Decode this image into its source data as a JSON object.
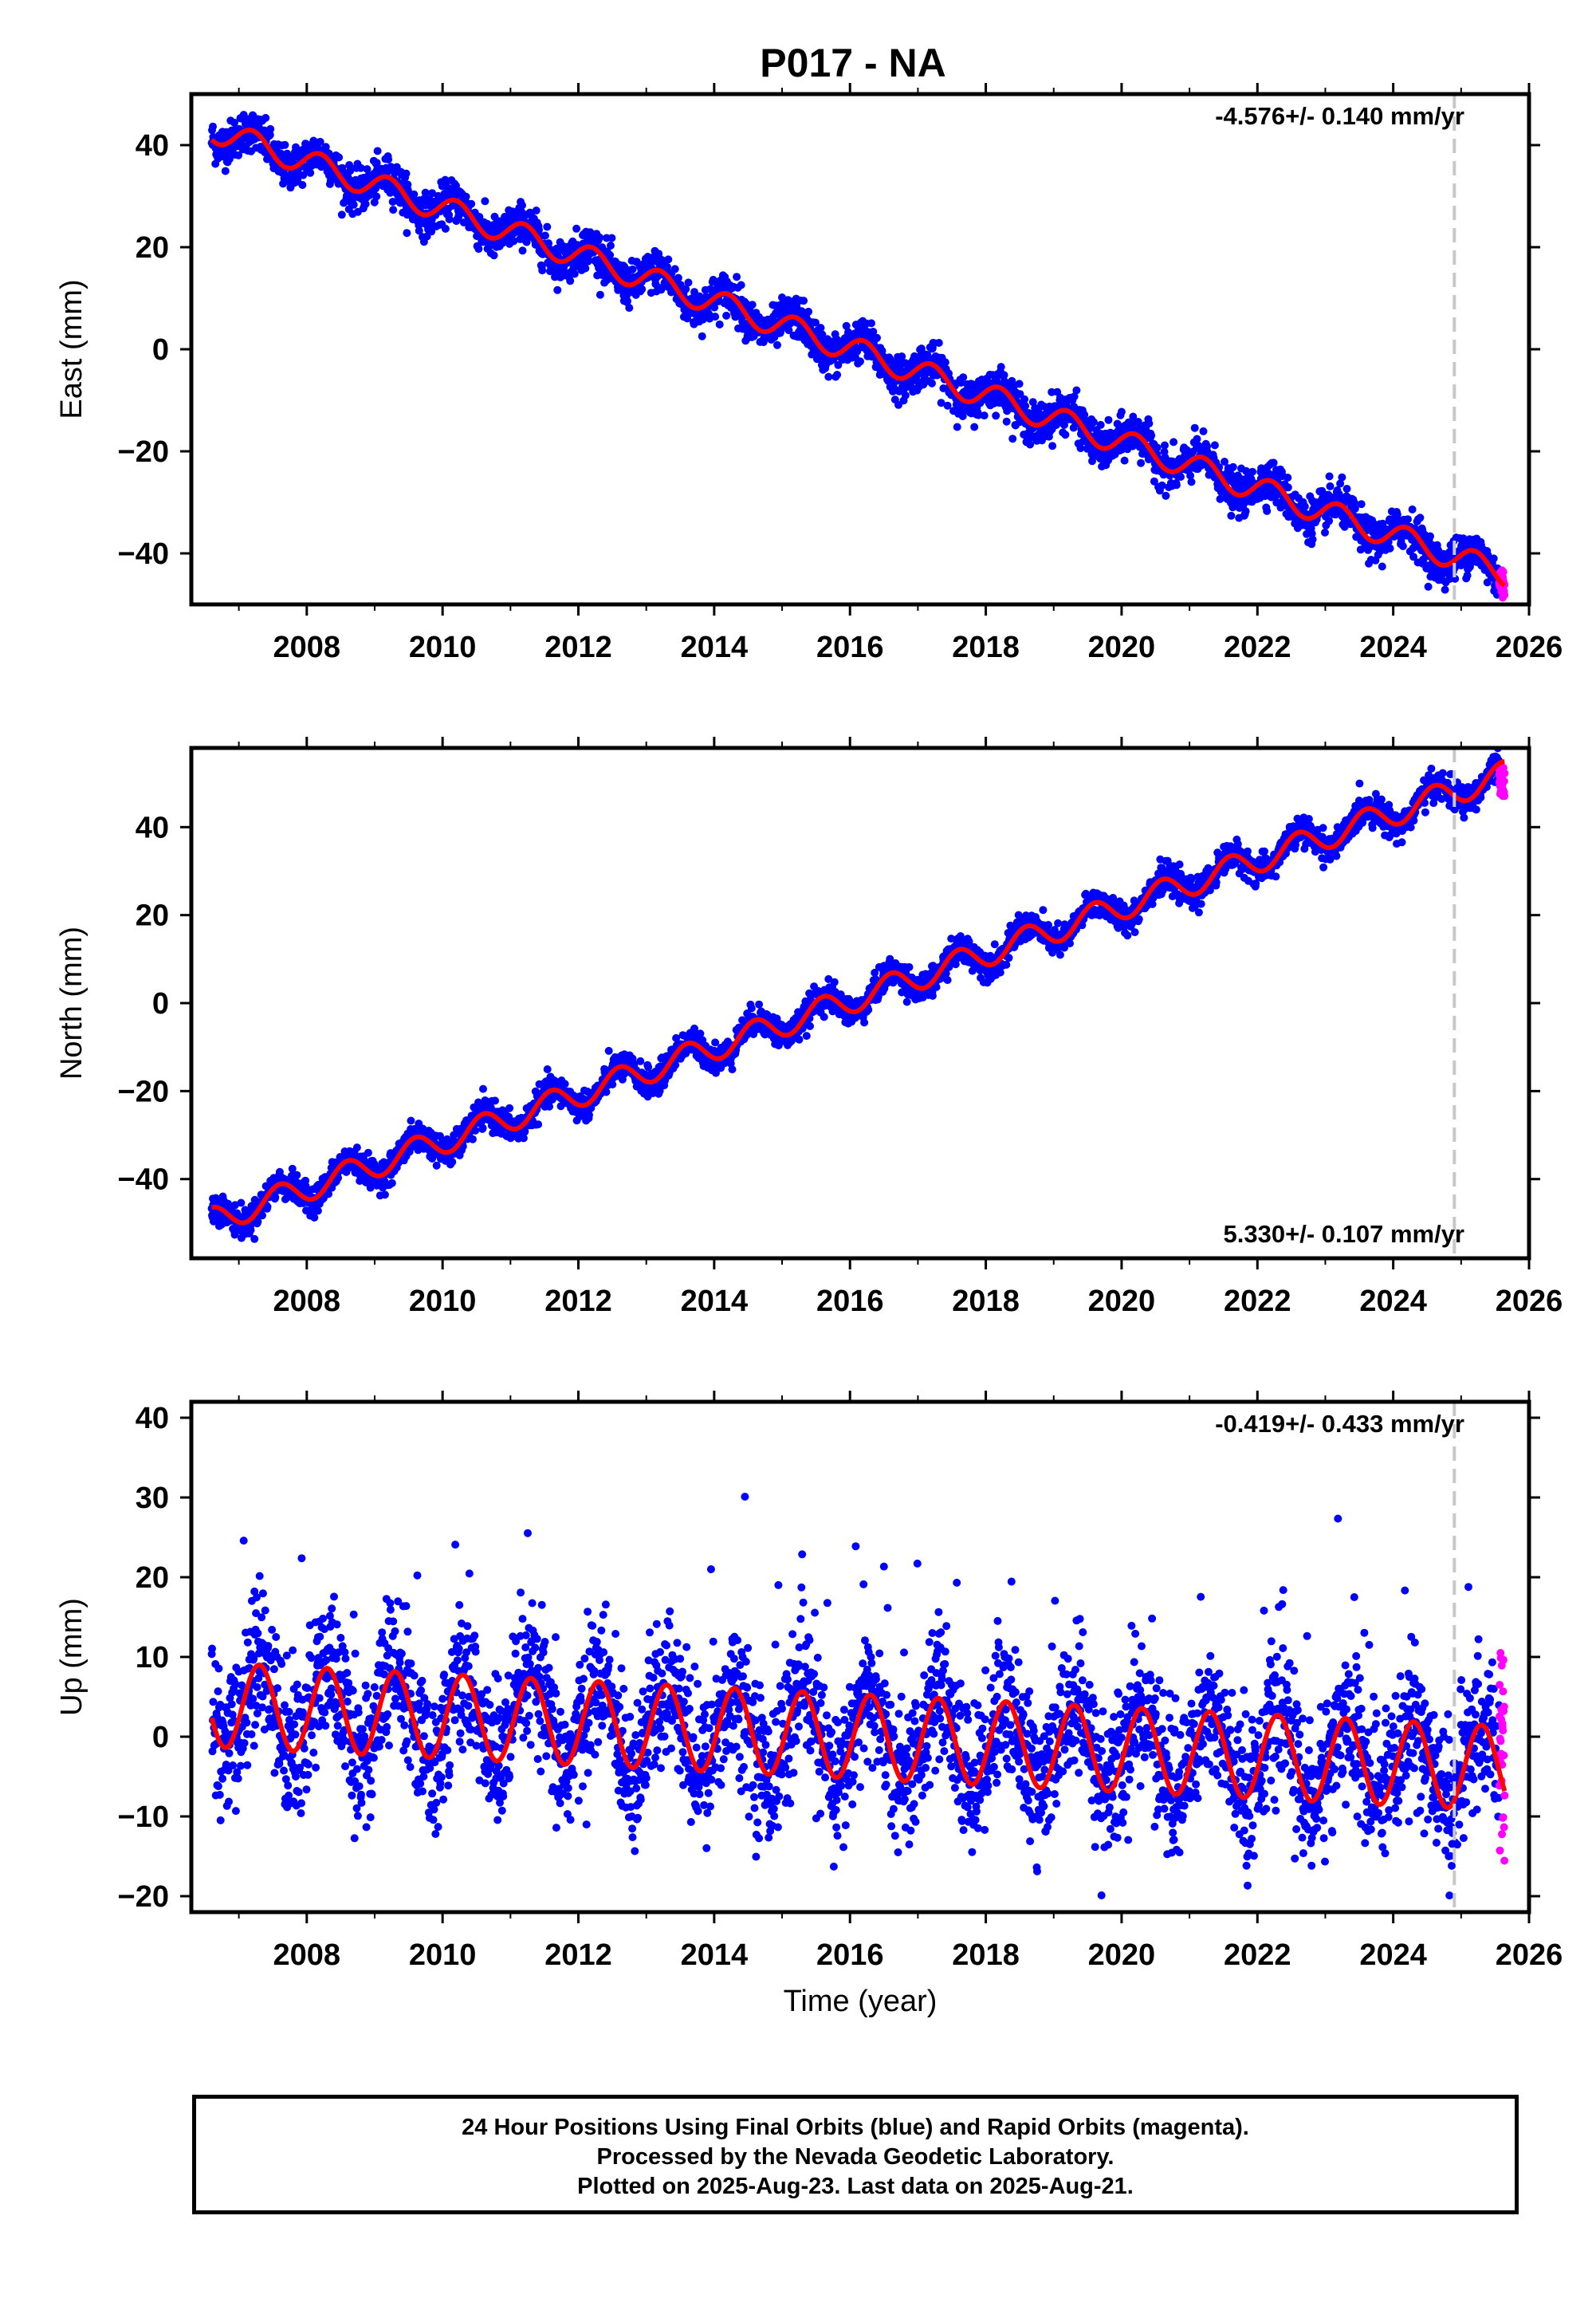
{
  "title": "P017 - NA",
  "colors": {
    "final_orbits": "#0000ff",
    "rapid_orbits": "#ff00ff",
    "model_fit": "#ff0000",
    "event_line": "#c8c8c8",
    "frame": "#000000"
  },
  "chart_data": [
    {
      "type": "scatter",
      "component": "east",
      "ylabel": "East (mm)",
      "xlabel": "",
      "xlim": [
        2006.3,
        2026.0
      ],
      "ylim": [
        -50,
        50
      ],
      "xticks": [
        2008,
        2010,
        2012,
        2014,
        2016,
        2018,
        2020,
        2022,
        2024,
        2026
      ],
      "yticks": [
        -40,
        -20,
        0,
        20,
        40
      ],
      "rate_label": "-4.576+/- 0.140 mm/yr",
      "rate_label_position": "top-right",
      "event_line_x": 2024.9,
      "model": {
        "start_year": 2006.6,
        "end_year": 2025.64,
        "start_value": 43.1,
        "rate_mm_per_yr": -4.576,
        "annual_amplitude": 2.5,
        "annual_phase_year": 0.2
      },
      "series": [
        {
          "name": "Final Orbits",
          "color": "#0000ff",
          "start_year": 2006.6,
          "end_year": 2025.56,
          "scatter_mm": 2.0
        },
        {
          "name": "Rapid Orbits",
          "color": "#ff00ff",
          "start_year": 2025.56,
          "end_year": 2025.64,
          "scatter_mm": 1.5
        }
      ]
    },
    {
      "type": "scatter",
      "component": "north",
      "ylabel": "North (mm)",
      "xlabel": "",
      "xlim": [
        2006.3,
        2026.0
      ],
      "ylim": [
        -58,
        58
      ],
      "xticks": [
        2008,
        2010,
        2012,
        2014,
        2016,
        2018,
        2020,
        2022,
        2024,
        2026
      ],
      "yticks": [
        -40,
        -20,
        0,
        20,
        40
      ],
      "rate_label": "5.330+/- 0.107 mm/yr",
      "rate_label_position": "bottom-right",
      "event_line_x": 2024.9,
      "model": {
        "start_year": 2006.6,
        "end_year": 2025.64,
        "start_value": -49.5,
        "rate_mm_per_yr": 5.33,
        "annual_amplitude": 3.0,
        "annual_phase_year": 0.6
      },
      "series": [
        {
          "name": "Final Orbits",
          "color": "#0000ff",
          "start_year": 2006.6,
          "end_year": 2025.56,
          "scatter_mm": 1.6
        },
        {
          "name": "Rapid Orbits",
          "color": "#ff00ff",
          "start_year": 2025.56,
          "end_year": 2025.64,
          "scatter_mm": 2.0,
          "offset_mm": -5
        }
      ]
    },
    {
      "type": "scatter",
      "component": "up",
      "ylabel": "Up (mm)",
      "xlabel": "Time (year)",
      "xlim": [
        2006.3,
        2026.0
      ],
      "ylim": [
        -22,
        42
      ],
      "xticks": [
        2008,
        2010,
        2012,
        2014,
        2016,
        2018,
        2020,
        2022,
        2024,
        2026
      ],
      "yticks": [
        -20,
        -10,
        0,
        10,
        20,
        30,
        40
      ],
      "rate_label": "-0.419+/- 0.433 mm/yr",
      "rate_label_position": "top-right",
      "event_line_x": 2024.9,
      "model": {
        "start_year": 2006.6,
        "end_year": 2025.64,
        "start_value": 4.0,
        "rate_mm_per_yr": -0.419,
        "annual_amplitude": 5.3,
        "annual_phase_year": 0.3
      },
      "series": [
        {
          "name": "Final Orbits",
          "color": "#0000ff",
          "start_year": 2006.6,
          "end_year": 2025.56,
          "scatter_mm": 4.5
        },
        {
          "name": "Rapid Orbits",
          "color": "#ff00ff",
          "start_year": 2025.56,
          "end_year": 2025.64,
          "scatter_mm": 6.0,
          "offset_mm": 4
        }
      ]
    }
  ],
  "footer": {
    "line1": "24 Hour Positions Using Final Orbits (blue) and Rapid Orbits (magenta).",
    "line2": "Processed by the Nevada Geodetic Laboratory.",
    "line3": "Plotted on 2025-Aug-23. Last data on 2025-Aug-21."
  }
}
